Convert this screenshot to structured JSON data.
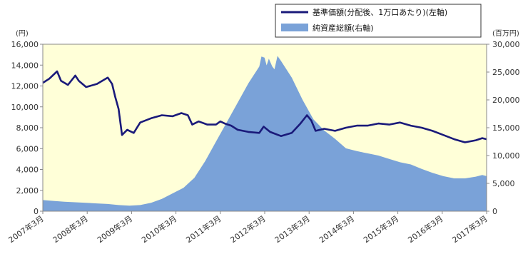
{
  "chart_data": {
    "type": "line+area",
    "left_unit": "(円)",
    "right_unit": "(百万円)",
    "x_labels": [
      "2007年3月",
      "2008年3月",
      "2009年3月",
      "2010年3月",
      "2011年3月",
      "2012年3月",
      "2013年3月",
      "2014年3月",
      "2015年3月",
      "2016年3月",
      "2017年3月"
    ],
    "left_axis": {
      "min": 0,
      "max": 16000,
      "ticks": [
        "0",
        "2,000",
        "4,000",
        "6,000",
        "8,000",
        "10,000",
        "12,000",
        "14,000",
        "16,000"
      ]
    },
    "right_axis": {
      "min": 0,
      "max": 30000,
      "ticks": [
        "0",
        "5,000",
        "10,000",
        "15,000",
        "20,000",
        "25,000",
        "30,000"
      ]
    },
    "series": [
      {
        "name": "基準価額(分配後、1万口あたり)(左軸)",
        "type": "line",
        "axis": "left",
        "color": "#1a1a7a",
        "points": [
          [
            2007.0,
            12300
          ],
          [
            2007.15,
            12700
          ],
          [
            2007.33,
            13400
          ],
          [
            2007.42,
            12500
          ],
          [
            2007.58,
            12100
          ],
          [
            2007.75,
            13000
          ],
          [
            2007.83,
            12500
          ],
          [
            2008.0,
            11900
          ],
          [
            2008.25,
            12200
          ],
          [
            2008.5,
            12800
          ],
          [
            2008.6,
            12200
          ],
          [
            2008.67,
            11000
          ],
          [
            2008.75,
            9800
          ],
          [
            2008.83,
            7300
          ],
          [
            2008.95,
            7800
          ],
          [
            2009.1,
            7500
          ],
          [
            2009.25,
            8500
          ],
          [
            2009.5,
            8900
          ],
          [
            2009.75,
            9200
          ],
          [
            2010.0,
            9100
          ],
          [
            2010.2,
            9400
          ],
          [
            2010.35,
            9200
          ],
          [
            2010.45,
            8300
          ],
          [
            2010.6,
            8600
          ],
          [
            2010.8,
            8300
          ],
          [
            2011.0,
            8300
          ],
          [
            2011.1,
            8600
          ],
          [
            2011.2,
            8400
          ],
          [
            2011.35,
            8200
          ],
          [
            2011.5,
            7800
          ],
          [
            2011.75,
            7600
          ],
          [
            2012.0,
            7500
          ],
          [
            2012.1,
            8100
          ],
          [
            2012.25,
            7600
          ],
          [
            2012.5,
            7200
          ],
          [
            2012.75,
            7500
          ],
          [
            2012.95,
            8400
          ],
          [
            2013.1,
            9200
          ],
          [
            2013.2,
            8700
          ],
          [
            2013.3,
            7700
          ],
          [
            2013.5,
            7900
          ],
          [
            2013.75,
            7700
          ],
          [
            2014.0,
            8000
          ],
          [
            2014.25,
            8200
          ],
          [
            2014.5,
            8200
          ],
          [
            2014.75,
            8400
          ],
          [
            2015.0,
            8300
          ],
          [
            2015.25,
            8500
          ],
          [
            2015.5,
            8200
          ],
          [
            2015.75,
            8000
          ],
          [
            2016.0,
            7700
          ],
          [
            2016.25,
            7300
          ],
          [
            2016.5,
            6900
          ],
          [
            2016.75,
            6600
          ],
          [
            2017.0,
            6800
          ],
          [
            2017.15,
            7000
          ],
          [
            2017.25,
            6900
          ]
        ]
      },
      {
        "name": "純資産総額(右軸)",
        "type": "area",
        "axis": "right",
        "color": "#7aa2d8",
        "points": [
          [
            2007.0,
            2000
          ],
          [
            2007.25,
            1850
          ],
          [
            2007.5,
            1700
          ],
          [
            2007.75,
            1600
          ],
          [
            2008.0,
            1500
          ],
          [
            2008.25,
            1400
          ],
          [
            2008.5,
            1300
          ],
          [
            2008.75,
            1100
          ],
          [
            2009.0,
            1000
          ],
          [
            2009.25,
            1100
          ],
          [
            2009.5,
            1500
          ],
          [
            2009.75,
            2200
          ],
          [
            2010.0,
            3200
          ],
          [
            2010.25,
            4200
          ],
          [
            2010.5,
            6000
          ],
          [
            2010.75,
            9000
          ],
          [
            2011.0,
            12500
          ],
          [
            2011.25,
            16000
          ],
          [
            2011.5,
            19500
          ],
          [
            2011.75,
            23000
          ],
          [
            2012.0,
            26000
          ],
          [
            2012.05,
            27800
          ],
          [
            2012.12,
            27600
          ],
          [
            2012.17,
            26200
          ],
          [
            2012.22,
            27400
          ],
          [
            2012.3,
            26000
          ],
          [
            2012.35,
            25500
          ],
          [
            2012.42,
            27900
          ],
          [
            2012.5,
            27000
          ],
          [
            2012.75,
            24000
          ],
          [
            2013.0,
            20000
          ],
          [
            2013.25,
            16500
          ],
          [
            2013.5,
            14500
          ],
          [
            2013.75,
            13000
          ],
          [
            2014.0,
            11300
          ],
          [
            2014.25,
            10800
          ],
          [
            2014.5,
            10400
          ],
          [
            2014.75,
            10000
          ],
          [
            2015.0,
            9400
          ],
          [
            2015.25,
            8800
          ],
          [
            2015.5,
            8400
          ],
          [
            2015.75,
            7600
          ],
          [
            2016.0,
            6900
          ],
          [
            2016.25,
            6300
          ],
          [
            2016.5,
            5900
          ],
          [
            2016.75,
            5900
          ],
          [
            2017.0,
            6200
          ],
          [
            2017.15,
            6500
          ],
          [
            2017.25,
            6300
          ]
        ]
      }
    ],
    "grid": false,
    "legend_position": "top-right",
    "colors": {
      "plot_bg": "#ffffd8",
      "line": "#1a1a7a",
      "area": "#7aa2d8"
    }
  }
}
